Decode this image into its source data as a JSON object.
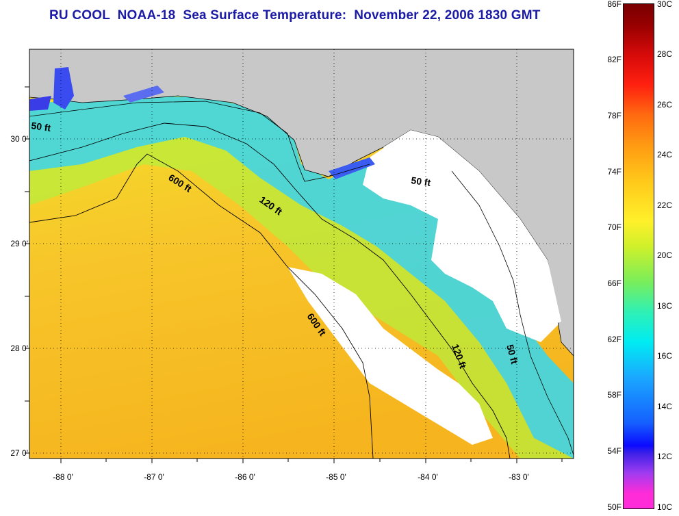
{
  "title": "RU COOL  NOAA-18  Sea Surface Temperature:  November 22, 2006 1830 GMT",
  "map": {
    "latitude_labels": [
      "30 0'",
      "29 0'",
      "28 0'",
      "27 0'"
    ],
    "longitude_labels": [
      "-88 0'",
      "-87 0'",
      "-86 0'",
      "-85 0'",
      "-84 0'",
      "-83 0'"
    ],
    "contours": [
      "50 ft",
      "600 ft",
      "120 ft",
      "50 ft",
      "600 ft",
      "120 ft",
      "50 ft"
    ],
    "colors": {
      "land": "#c8c8c8",
      "cloud": "#ffffff",
      "warm": "#f7c324",
      "mid": "#f0ef22",
      "cool": "#3ad8f0"
    }
  },
  "colorbar": {
    "fahrenheit": [
      "86F",
      "82F",
      "78F",
      "74F",
      "70F",
      "66F",
      "62F",
      "58F",
      "54F",
      "50F"
    ],
    "celsius": [
      "30C",
      "28C",
      "26C",
      "24C",
      "22C",
      "20C",
      "18C",
      "16C",
      "14C",
      "12C",
      "10C"
    ]
  }
}
